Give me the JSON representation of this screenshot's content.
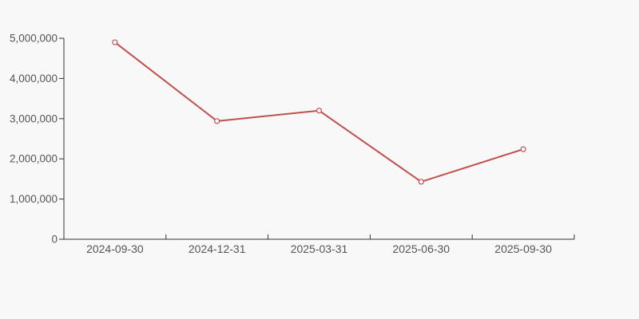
{
  "chart_data": {
    "type": "line",
    "title": "",
    "xlabel": "",
    "ylabel": "",
    "categories": [
      "2024-09-30",
      "2024-12-31",
      "2025-03-31",
      "2025-06-30",
      "2025-09-30"
    ],
    "values": [
      4900000,
      2940000,
      3200000,
      1430000,
      2240000
    ],
    "ylim": [
      0,
      5000000
    ],
    "y_tick_interval": 1000000,
    "y_tick_labels": [
      "0",
      "1,000,000",
      "2,000,000",
      "3,000,000",
      "4,000,000",
      "5,000,000"
    ],
    "grid": false,
    "legend": "none",
    "marker": "open-circle",
    "line_color": "#c0504d",
    "marker_fill": "#ffffff",
    "axis_color": "#333333",
    "label_color": "#555555",
    "background_color": "#f8f8f8"
  }
}
